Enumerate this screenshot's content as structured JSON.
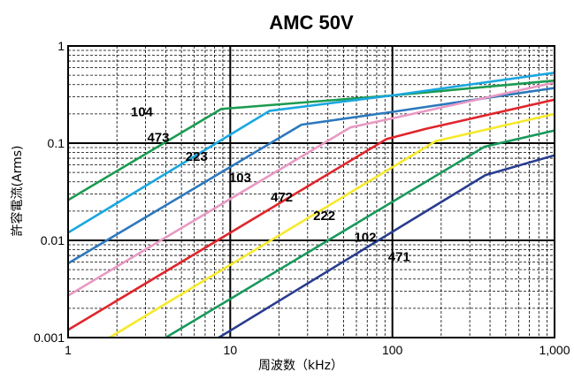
{
  "chart_data": {
    "type": "line",
    "title": "AMC 50V",
    "xlabel": "周波数（kHz）",
    "ylabel": "許容電流(Arms)",
    "xscale": "log",
    "yscale": "log",
    "xlim": [
      1,
      1000
    ],
    "ylim": [
      0.001,
      1
    ],
    "grid": true,
    "x_ticks": [
      {
        "value": 1,
        "label": "1"
      },
      {
        "value": 10,
        "label": "10"
      },
      {
        "value": 100,
        "label": "100"
      },
      {
        "value": 1000,
        "label": "1,000"
      }
    ],
    "y_ticks": [
      {
        "value": 0.001,
        "label": "0.001"
      },
      {
        "value": 0.01,
        "label": "0.01"
      },
      {
        "value": 0.1,
        "label": "0.1"
      },
      {
        "value": 1,
        "label": "1"
      }
    ],
    "series": [
      {
        "name": "104",
        "color": "#1a9b50",
        "label_at": [
          2.85,
          0.21
        ],
        "points": [
          [
            1,
            0.026
          ],
          [
            8.8,
            0.225
          ],
          [
            100,
            0.31
          ],
          [
            1000,
            0.44
          ]
        ]
      },
      {
        "name": "473",
        "color": "#1aa7df",
        "label_at": [
          3.6,
          0.115
        ],
        "points": [
          [
            1,
            0.012
          ],
          [
            17.5,
            0.215
          ],
          [
            100,
            0.31
          ],
          [
            1000,
            0.53
          ]
        ]
      },
      {
        "name": "223",
        "color": "#2c78bd",
        "label_at": [
          6.2,
          0.073
        ],
        "points": [
          [
            1,
            0.0058
          ],
          [
            27.5,
            0.155
          ],
          [
            100,
            0.21
          ],
          [
            1000,
            0.37
          ]
        ]
      },
      {
        "name": "103",
        "color": "#e899c3",
        "label_at": [
          11.5,
          0.044
        ],
        "points": [
          [
            1,
            0.0027
          ],
          [
            55,
            0.145
          ],
          [
            100,
            0.18
          ],
          [
            1000,
            0.42
          ]
        ]
      },
      {
        "name": "472",
        "color": "#e0252b",
        "label_at": [
          20.8,
          0.028
        ],
        "points": [
          [
            1,
            0.0012
          ],
          [
            92,
            0.11
          ],
          [
            160,
            0.14
          ],
          [
            1000,
            0.28
          ]
        ]
      },
      {
        "name": "222",
        "color": "#f6e92a",
        "label_at": [
          38,
          0.018
        ],
        "points": [
          [
            1.8,
            0.001
          ],
          [
            185,
            0.105
          ],
          [
            1000,
            0.2
          ]
        ]
      },
      {
        "name": "102",
        "color": "#17995a",
        "label_at": [
          68,
          0.0108
        ],
        "points": [
          [
            4,
            0.001
          ],
          [
            370,
            0.092
          ],
          [
            1000,
            0.135
          ]
        ]
      },
      {
        "name": "471",
        "color": "#283c8f",
        "label_at": [
          110,
          0.0068
        ],
        "points": [
          [
            8.5,
            0.001
          ],
          [
            375,
            0.047
          ],
          [
            1000,
            0.075
          ]
        ]
      }
    ]
  }
}
